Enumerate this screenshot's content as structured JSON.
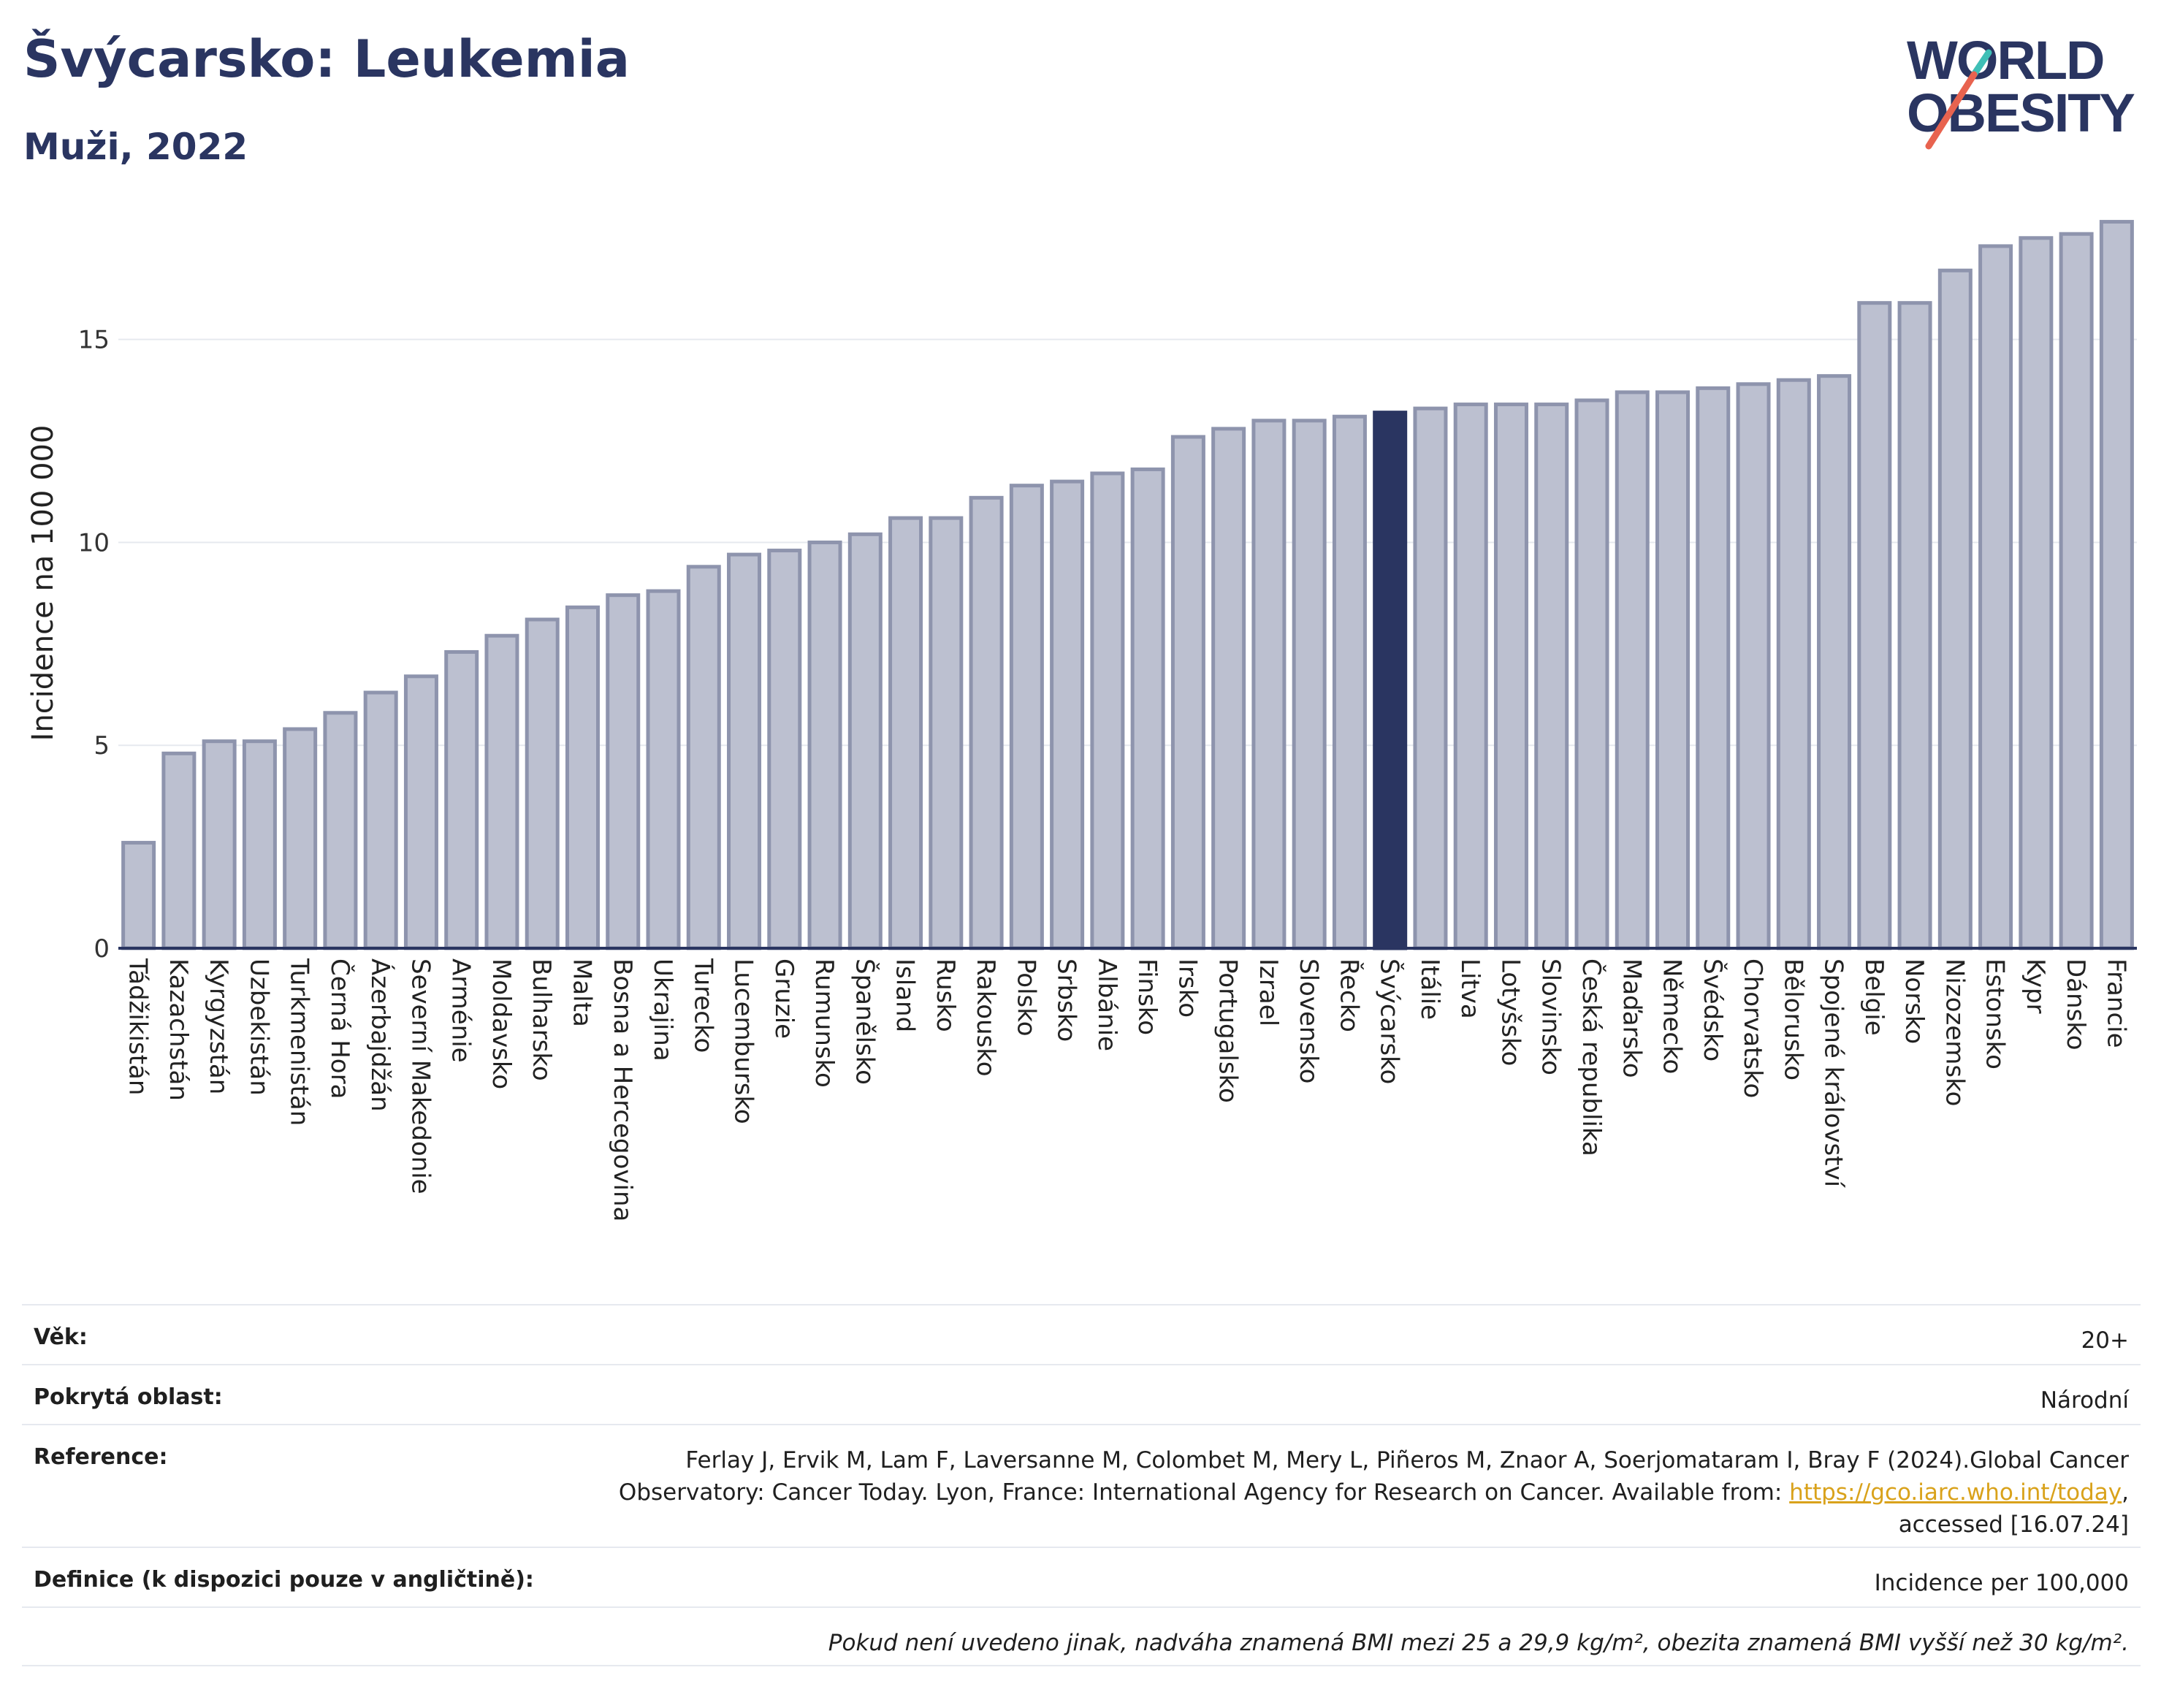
{
  "header": {
    "title": "Švýcarsko: Leukemia",
    "subtitle": "Muži, 2022"
  },
  "logo": {
    "line1": "WORLD",
    "line2": "OBESITY",
    "accent_teal": "#3fbfb6",
    "accent_red": "#e8634f"
  },
  "colors": {
    "bar": "#bcc0d0",
    "bar_border": "#8e94ad",
    "highlight": "#2a3561",
    "grid": "#e6e9ef"
  },
  "chart_data": {
    "type": "bar",
    "title": "Švýcarsko: Leukemia",
    "subtitle": "Muži, 2022",
    "ylabel": "Incidence na 100 000",
    "xlabel": "",
    "ylim": [
      0,
      18
    ],
    "yticks": [
      0,
      5,
      10,
      15
    ],
    "grid": true,
    "highlight": "Švýcarsko",
    "categories": [
      "Tádžikistán",
      "Kazachstán",
      "Kyrgyzstán",
      "Uzbekistán",
      "Turkmenistán",
      "Černá Hora",
      "Ázerbajdžán",
      "Severní Makedonie",
      "Arménie",
      "Moldavsko",
      "Bulharsko",
      "Malta",
      "Bosna a Hercegovina",
      "Ukrajina",
      "Turecko",
      "Lucembursko",
      "Gruzie",
      "Rumunsko",
      "Španělsko",
      "Island",
      "Rusko",
      "Rakousko",
      "Polsko",
      "Srbsko",
      "Albánie",
      "Finsko",
      "Irsko",
      "Portugalsko",
      "Izrael",
      "Slovensko",
      "Řecko",
      "Švýcarsko",
      "Itálie",
      "Litva",
      "Lotyšsko",
      "Slovinsko",
      "Česká republika",
      "Maďarsko",
      "Německo",
      "Švédsko",
      "Chorvatsko",
      "Bělorusko",
      "Spojené království",
      "Belgie",
      "Norsko",
      "Nizozemsko",
      "Estonsko",
      "Kypr",
      "Dánsko",
      "Francie"
    ],
    "values": [
      2.6,
      4.8,
      5.1,
      5.1,
      5.4,
      5.8,
      6.3,
      6.7,
      7.3,
      7.7,
      8.1,
      8.4,
      8.7,
      8.8,
      9.4,
      9.7,
      9.8,
      10.0,
      10.2,
      10.6,
      10.6,
      11.1,
      11.4,
      11.5,
      11.7,
      11.8,
      12.6,
      12.8,
      13.0,
      13.0,
      13.1,
      13.2,
      13.3,
      13.4,
      13.4,
      13.4,
      13.5,
      13.7,
      13.7,
      13.8,
      13.9,
      14.0,
      14.1,
      15.9,
      15.9,
      16.7,
      17.3,
      17.5,
      17.6,
      17.9
    ]
  },
  "info": {
    "age_label": "Věk:",
    "age_value": "20+",
    "area_label": "Pokrytá oblast:",
    "area_value": "Národní",
    "ref_label": "Reference:",
    "ref_line1": "Ferlay J, Ervik M, Lam F, Laversanne M, Colombet M, Mery L, Piñeros M, Znaor A, Soerjomataram I, Bray F (2024).Global Cancer",
    "ref_line2": "Observatory: Cancer Today. Lyon, France: International Agency for Research on Cancer. Available from: ",
    "ref_link": "https://gco.iarc.who.int/today",
    "ref_line3": "accessed [16.07.24]",
    "def_label": "Definice (k dispozici pouze v angličtině):",
    "def_value": "Incidence per 100,000",
    "note": "Pokud není uvedeno jinak, nadváha znamená BMI mezi 25 a 29,9 kg/m², obezita znamená BMI vyšší než 30 kg/m²."
  }
}
